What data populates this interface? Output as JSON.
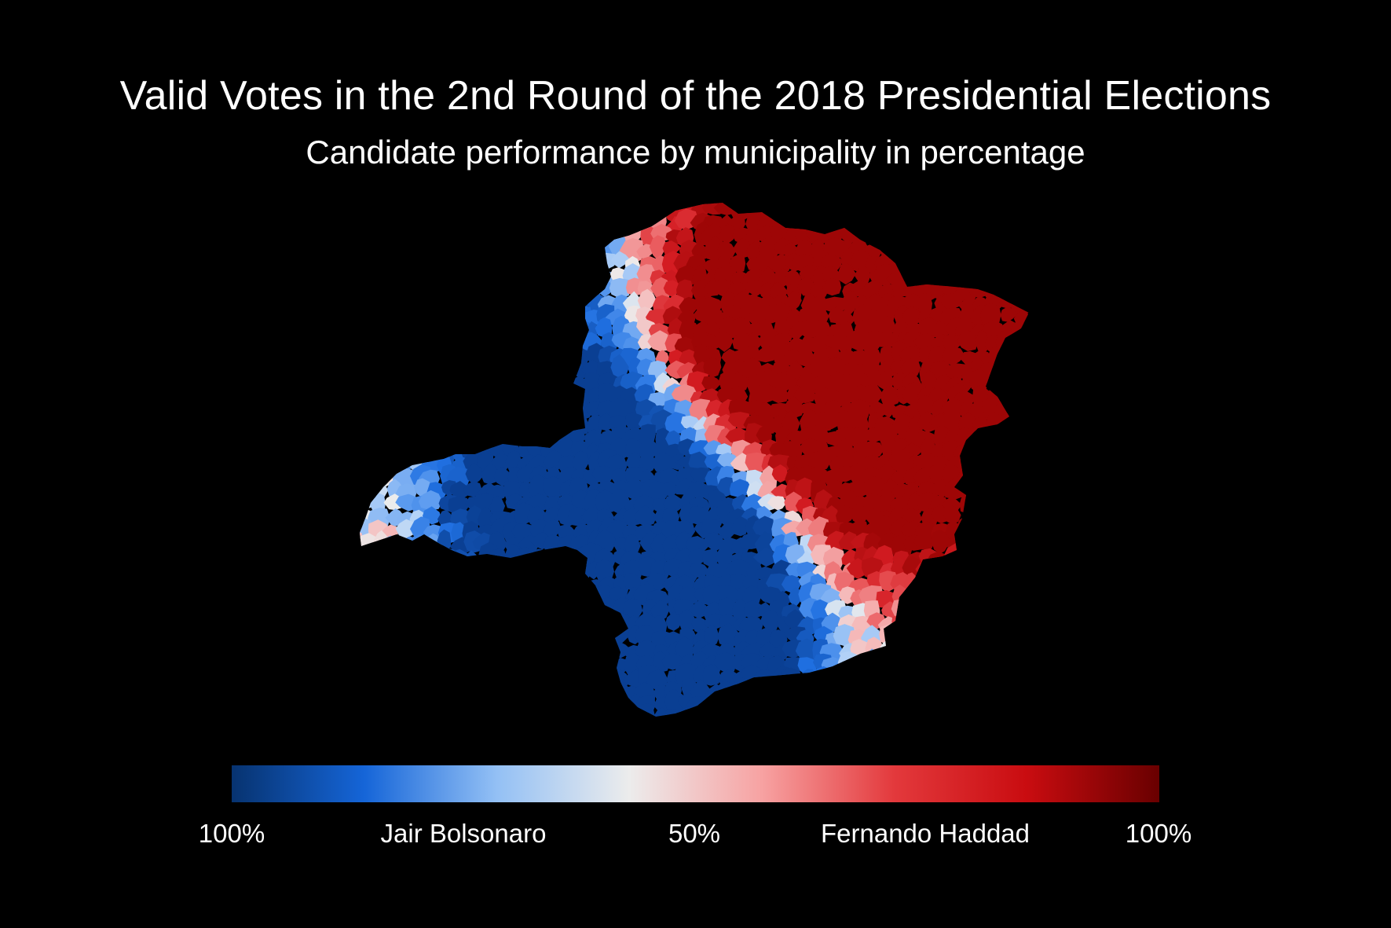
{
  "title": "Valid Votes in the 2nd Round of the 2018 Presidential Elections",
  "subtitle": "Candidate performance by municipality in percentage",
  "legend": {
    "labels": [
      "100%",
      "Jair Bolsonaro",
      "50%",
      "Fernando Haddad",
      "100%"
    ],
    "colors": [
      "#073370",
      "#1565d8",
      "#93c0f5",
      "#ececec",
      "#f7a2a2",
      "#e3393c",
      "#c90c10",
      "#690000"
    ]
  },
  "map": {
    "region": "Minas Gerais",
    "palette": {
      "bolsonaro_dark": "#0a4ba8",
      "bolsonaro_mid": "#3e87e8",
      "bolsonaro_light": "#a9cdf6",
      "neutral": "#ececec",
      "haddad_light": "#f4a0a0",
      "haddad_mid": "#e6393f",
      "haddad_dark": "#a00000"
    }
  }
}
